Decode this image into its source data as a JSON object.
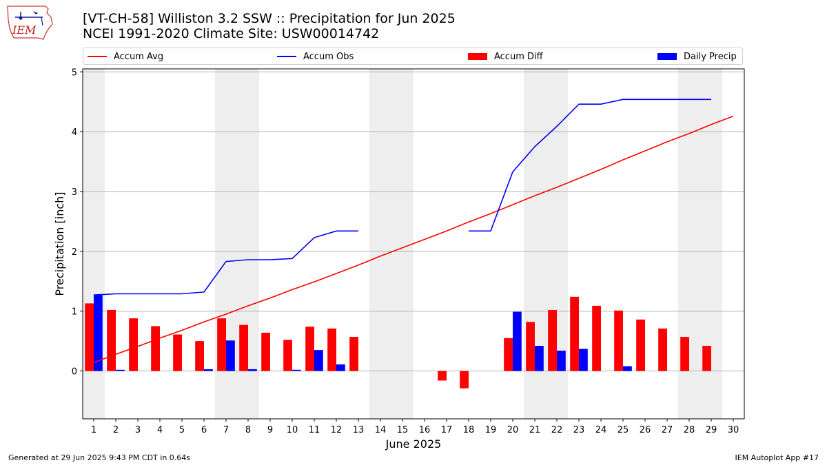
{
  "logo": {
    "text": "IEM"
  },
  "header": {
    "title_line1": "[VT-CH-58] Williston 3.2 SSW :: Precipitation for Jun 2025",
    "title_line2": "NCEI 1991-2020 Climate Site: USW00014742"
  },
  "legend": [
    {
      "label": "Accum Avg",
      "kind": "line",
      "color": "#ff0000"
    },
    {
      "label": "Accum Obs",
      "kind": "line",
      "color": "#0000ff"
    },
    {
      "label": "Accum Diff",
      "kind": "bar",
      "color": "#ff0000"
    },
    {
      "label": "Daily Precip",
      "kind": "bar",
      "color": "#0000ff"
    }
  ],
  "footer": {
    "left": "Generated at 29 Jun 2025 9:43 PM CDT in 0.64s",
    "right": "IEM Autoplot App #17"
  },
  "chart_data": {
    "type": "bar",
    "xlabel": "June 2025",
    "ylabel": "Precipitation [inch]",
    "xlim": [
      0.5,
      30.5
    ],
    "ylim": [
      -0.8,
      5.05
    ],
    "yticks": [
      0,
      1,
      2,
      3,
      4,
      5
    ],
    "categories": [
      "1",
      "2",
      "3",
      "4",
      "5",
      "6",
      "7",
      "8",
      "9",
      "10",
      "11",
      "12",
      "13",
      "14",
      "15",
      "16",
      "17",
      "18",
      "19",
      "20",
      "21",
      "22",
      "23",
      "24",
      "25",
      "26",
      "27",
      "28",
      "29",
      "30"
    ],
    "shaded_weekends": [
      1,
      7,
      8,
      14,
      15,
      21,
      22,
      28,
      29
    ],
    "grid": "horizontal",
    "legend_position": "top",
    "series": [
      {
        "name": "Accum Avg",
        "kind": "line",
        "color": "#ff0000",
        "values": [
          0.14,
          0.28,
          0.41,
          0.55,
          0.68,
          0.82,
          0.95,
          1.09,
          1.22,
          1.36,
          1.49,
          1.63,
          1.77,
          1.92,
          2.06,
          2.2,
          2.34,
          2.49,
          2.63,
          2.78,
          2.93,
          3.07,
          3.22,
          3.37,
          3.53,
          3.68,
          3.83,
          3.97,
          4.12,
          4.26
        ]
      },
      {
        "name": "Accum Obs",
        "kind": "line",
        "color": "#0000ff",
        "values": [
          1.27,
          1.29,
          1.29,
          1.29,
          1.29,
          1.32,
          1.83,
          1.86,
          1.86,
          1.88,
          2.23,
          2.34,
          2.34,
          null,
          null,
          null,
          null,
          2.34,
          2.34,
          3.33,
          3.75,
          4.09,
          4.46,
          4.46,
          4.54,
          4.54,
          4.54,
          4.54,
          4.54,
          null
        ]
      },
      {
        "name": "Accum Diff",
        "kind": "bar",
        "color": "#ff0000",
        "values": [
          1.13,
          1.02,
          0.88,
          0.75,
          0.61,
          0.5,
          0.88,
          0.77,
          0.64,
          0.52,
          0.74,
          0.71,
          0.57,
          null,
          null,
          null,
          -0.16,
          -0.29,
          null,
          0.55,
          0.82,
          1.02,
          1.24,
          1.09,
          1.01,
          0.86,
          0.71,
          0.57,
          0.42,
          null
        ]
      },
      {
        "name": "Daily Precip",
        "kind": "bar",
        "color": "#0000ff",
        "values": [
          1.27,
          0.02,
          0,
          0,
          0,
          0.03,
          0.51,
          0.03,
          0,
          0.02,
          0.35,
          0.11,
          0,
          null,
          null,
          null,
          null,
          null,
          null,
          0.99,
          0.42,
          0.34,
          0.37,
          0,
          0.08,
          0,
          0,
          0,
          0,
          null
        ]
      }
    ]
  }
}
